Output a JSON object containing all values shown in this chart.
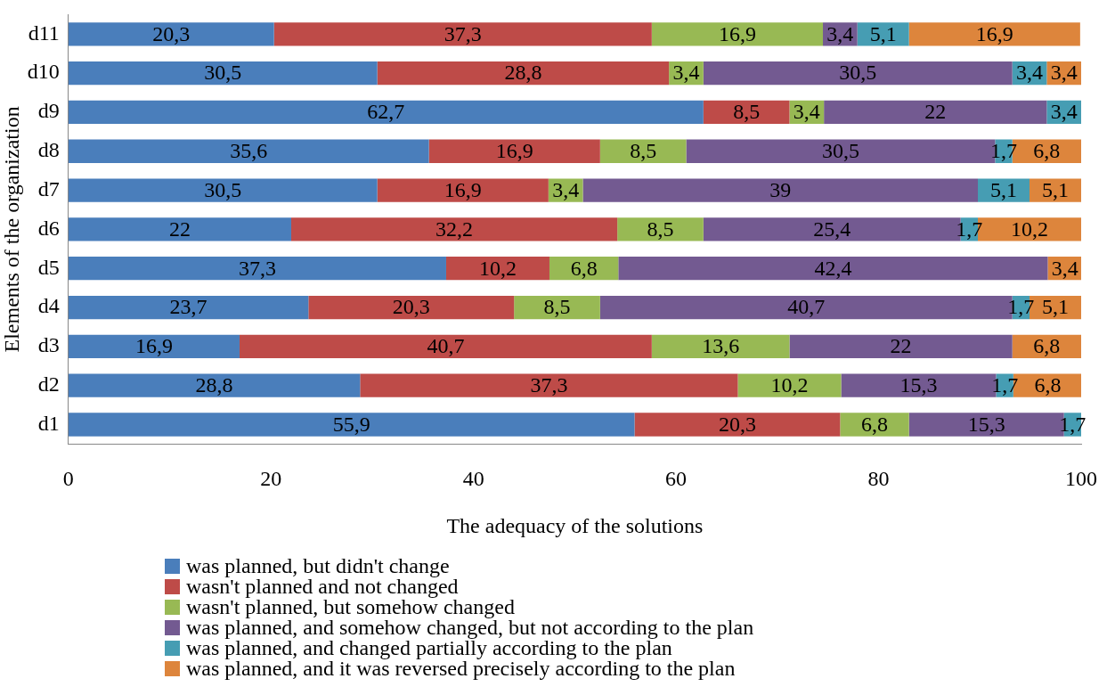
{
  "chart_data": {
    "type": "bar",
    "orientation": "horizontal",
    "stacked": true,
    "xlabel": "The adequacy of the solutions",
    "ylabel": "Elements of the organization",
    "categories": [
      "d11",
      "d10",
      "d9",
      "d8",
      "d7",
      "d6",
      "d5",
      "d4",
      "d3",
      "d2",
      "d1"
    ],
    "xlim": [
      0,
      100
    ],
    "xticks": [
      0,
      20,
      40,
      60,
      80,
      100
    ],
    "grid": false,
    "legend": "bottom",
    "series": [
      {
        "name": "was planned, but didn't change",
        "color": "#4a7ebb",
        "values": [
          20.3,
          30.5,
          62.7,
          35.6,
          30.5,
          22,
          37.3,
          23.7,
          16.9,
          28.8,
          55.9
        ],
        "value_labels": [
          "20,3",
          "30,5",
          "62,7",
          "35,6",
          "30,5",
          "22",
          "37,3",
          "23,7",
          "16,9",
          "28,8",
          "55,9"
        ]
      },
      {
        "name": "wasn't planned and not changed",
        "color": "#be4b48",
        "values": [
          37.3,
          28.8,
          8.5,
          16.9,
          16.9,
          32.2,
          10.2,
          20.3,
          40.7,
          37.3,
          20.3
        ],
        "value_labels": [
          "37,3",
          "28,8",
          "8,5",
          "16,9",
          "16,9",
          "32,2",
          "10,2",
          "20,3",
          "40,7",
          "37,3",
          "20,3"
        ]
      },
      {
        "name": "wasn't planned, but somehow changed",
        "color": "#98b954",
        "values": [
          16.9,
          3.4,
          3.4,
          8.5,
          3.4,
          8.5,
          6.8,
          8.5,
          13.6,
          10.2,
          6.8
        ],
        "value_labels": [
          "16,9",
          "3,4",
          "3,4",
          "8,5",
          "3,4",
          "8,5",
          "6,8",
          "8,5",
          "13,6",
          "10,2",
          "6,8"
        ]
      },
      {
        "name": "was planned, and somehow changed, but not according to the plan",
        "color": "#735a91",
        "values": [
          3.4,
          30.5,
          22,
          30.5,
          39,
          25.4,
          42.4,
          40.7,
          22,
          15.3,
          15.3
        ],
        "value_labels": [
          "3,4",
          "30,5",
          "22",
          "30,5",
          "39",
          "25,4",
          "42,4",
          "40,7",
          "22",
          "15,3",
          "15,3"
        ]
      },
      {
        "name": "was planned, and changed partially according to the plan",
        "color": "#469db3",
        "values": [
          5.1,
          3.4,
          3.4,
          1.7,
          5.1,
          1.7,
          null,
          1.7,
          null,
          1.7,
          1.7
        ],
        "value_labels": [
          "5,1",
          "3,4",
          "3,4",
          "1,7",
          "5,1",
          "1,7",
          null,
          "1,7",
          null,
          "1,7",
          "1,7"
        ]
      },
      {
        "name": "was planned, and it was reversed precisely according to the plan",
        "color": "#dd853c",
        "values": [
          16.9,
          3.4,
          null,
          6.8,
          5.1,
          10.2,
          3.4,
          5.1,
          6.8,
          6.8,
          null
        ],
        "value_labels": [
          "16,9",
          "3,4",
          null,
          "6,8",
          "5,1",
          "10,2",
          "3,4",
          "5,1",
          "6,8",
          "6,8",
          null
        ]
      }
    ]
  }
}
